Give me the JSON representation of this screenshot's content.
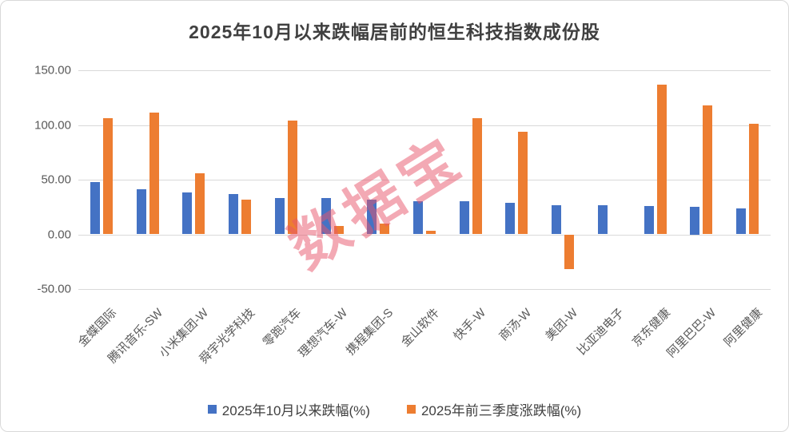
{
  "watermark": {
    "text": "数据宝",
    "color": "#E8566B"
  },
  "axis": {
    "ytick_labels": [
      "150.00",
      "100.00",
      "50.00",
      "0.00",
      "-50.00"
    ],
    "ytick_values": [
      150,
      100,
      50,
      0,
      -50
    ]
  },
  "chart_data": {
    "type": "bar",
    "title": "2025年10月以来跌幅居前的恒生科技指数成份股",
    "categories": [
      "金蝶国际",
      "腾讯音乐-SW",
      "小米集团-W",
      "舜宇光学科技",
      "零跑汽车",
      "理想汽车-W",
      "携程集团-S",
      "金山软件",
      "快手-W",
      "商汤-W",
      "美团-W",
      "比亚迪电子",
      "京东健康",
      "阿里巴巴-W",
      "阿里健康"
    ],
    "series": [
      {
        "name": "2025年10月以来跌幅(%)",
        "color": "#4472C4",
        "values": [
          48,
          41,
          38,
          37,
          33,
          33,
          32,
          30,
          30,
          29,
          27,
          27,
          26,
          25,
          24
        ]
      },
      {
        "name": "2025年前三季度涨跌幅(%)",
        "color": "#ED7D31",
        "values": [
          106,
          111,
          56,
          32,
          104,
          8,
          10,
          3,
          106,
          94,
          -32,
          0,
          137,
          118,
          101
        ]
      }
    ],
    "xlabel": "",
    "ylabel": "",
    "ylim": [
      -50,
      150
    ],
    "ytick_step": 50,
    "grid": true,
    "gridline_color": "#D9D9D9",
    "legend_position": "bottom"
  }
}
